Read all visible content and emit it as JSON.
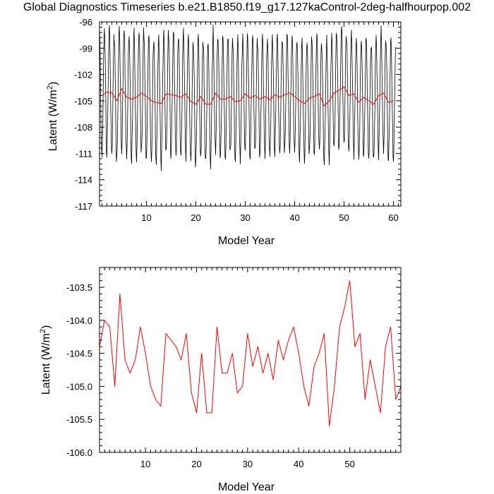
{
  "title": "Global Diagnostics Timeseries b.e21.B1850.f19_g17.127kaControl-2deg-halfhourpop.002",
  "colors": {
    "monthly": "#000000",
    "annual": "#ff0000"
  },
  "chart_data": [
    {
      "type": "line",
      "xlabel": "Model Year",
      "ylabel_main": "Latent (W/m",
      "ylabel_sup": "2",
      "ylabel_tail": ")",
      "xlim": [
        0.5,
        61.5
      ],
      "ylim": [
        -117,
        -96
      ],
      "xticks": [
        10,
        20,
        30,
        40,
        50,
        60
      ],
      "xtick_labels": [
        "10",
        "20",
        "30",
        "40",
        "50",
        "60"
      ],
      "yticks": [
        -117,
        -114,
        -111,
        -108,
        -105,
        -102,
        -99,
        -96
      ],
      "ytick_labels": [
        "-117",
        "-114",
        "-111",
        "-108",
        "-105",
        "-102",
        "-99",
        "-96"
      ],
      "grid": false,
      "series": [
        {
          "kind": "monthly-cycle",
          "color": "#000000",
          "x_start": 0.5,
          "points_per_year": 12,
          "annual_shape": [
            -97.6,
            -98.8,
            -102.0,
            -105.2,
            -108.4,
            -110.8,
            -111.4,
            -109.8,
            -107.0,
            -103.8,
            -100.6,
            -98.2
          ]
        },
        {
          "kind": "annual-mean",
          "color": "#ff0000",
          "x": [
            1,
            2,
            3,
            4,
            5,
            6,
            7,
            8,
            9,
            10,
            11,
            12,
            13,
            14,
            15,
            16,
            17,
            18,
            19,
            20,
            21,
            22,
            23,
            24,
            25,
            26,
            27,
            28,
            29,
            30,
            31,
            32,
            33,
            34,
            35,
            36,
            37,
            38,
            39,
            40,
            41,
            42,
            43,
            44,
            45,
            46,
            47,
            48,
            49,
            50,
            51,
            52,
            53,
            54,
            55,
            56,
            57,
            58,
            59,
            60
          ],
          "values": [
            -104.4,
            -104.0,
            -104.1,
            -105.0,
            -103.6,
            -104.6,
            -104.8,
            -104.6,
            -104.1,
            -104.5,
            -105.0,
            -105.2,
            -105.3,
            -104.2,
            -104.3,
            -104.4,
            -104.6,
            -104.2,
            -105.1,
            -105.4,
            -104.5,
            -105.4,
            -105.4,
            -104.1,
            -104.8,
            -104.8,
            -104.5,
            -105.1,
            -105.0,
            -104.2,
            -104.7,
            -104.4,
            -104.8,
            -104.5,
            -104.9,
            -104.3,
            -104.6,
            -104.3,
            -104.1,
            -104.5,
            -105.0,
            -105.3,
            -104.7,
            -104.5,
            -104.2,
            -105.6,
            -105.0,
            -104.1,
            -103.8,
            -103.4,
            -104.4,
            -104.2,
            -105.2,
            -104.6,
            -105.0,
            -105.4,
            -104.4,
            -104.1,
            -105.2,
            -105.0
          ]
        }
      ]
    },
    {
      "type": "line",
      "xlabel": "Model Year",
      "ylabel_main": "Latent (W/m",
      "ylabel_sup": "2",
      "ylabel_tail": ")",
      "xlim": [
        1,
        60
      ],
      "ylim": [
        -106.0,
        -103.2
      ],
      "xticks": [
        10,
        20,
        30,
        40,
        50
      ],
      "xtick_labels": [
        "10",
        "20",
        "30",
        "40",
        "50"
      ],
      "yticks": [
        -106.0,
        -105.5,
        -105.0,
        -104.5,
        -104.0,
        -103.5
      ],
      "ytick_labels": [
        "-106.0",
        "-105.5",
        "-105.0",
        "-104.5",
        "-104.0",
        "-103.5"
      ],
      "grid": false,
      "series": [
        {
          "kind": "annual-mean",
          "color": "#ff0000",
          "x": [
            1,
            2,
            3,
            4,
            5,
            6,
            7,
            8,
            9,
            10,
            11,
            12,
            13,
            14,
            15,
            16,
            17,
            18,
            19,
            20,
            21,
            22,
            23,
            24,
            25,
            26,
            27,
            28,
            29,
            30,
            31,
            32,
            33,
            34,
            35,
            36,
            37,
            38,
            39,
            40,
            41,
            42,
            43,
            44,
            45,
            46,
            47,
            48,
            49,
            50,
            51,
            52,
            53,
            54,
            55,
            56,
            57,
            58,
            59,
            60
          ],
          "values": [
            -104.4,
            -104.0,
            -104.1,
            -105.0,
            -103.6,
            -104.6,
            -104.8,
            -104.6,
            -104.1,
            -104.5,
            -105.0,
            -105.2,
            -105.3,
            -104.2,
            -104.3,
            -104.4,
            -104.6,
            -104.2,
            -105.1,
            -105.4,
            -104.5,
            -105.4,
            -105.4,
            -104.1,
            -104.8,
            -104.8,
            -104.5,
            -105.1,
            -105.0,
            -104.2,
            -104.7,
            -104.4,
            -104.8,
            -104.5,
            -104.9,
            -104.3,
            -104.6,
            -104.3,
            -104.1,
            -104.5,
            -105.0,
            -105.3,
            -104.7,
            -104.5,
            -104.2,
            -105.6,
            -105.0,
            -104.1,
            -103.8,
            -103.4,
            -104.4,
            -104.2,
            -105.2,
            -104.6,
            -105.0,
            -105.4,
            -104.4,
            -104.1,
            -105.2,
            -105.0
          ]
        }
      ]
    }
  ]
}
